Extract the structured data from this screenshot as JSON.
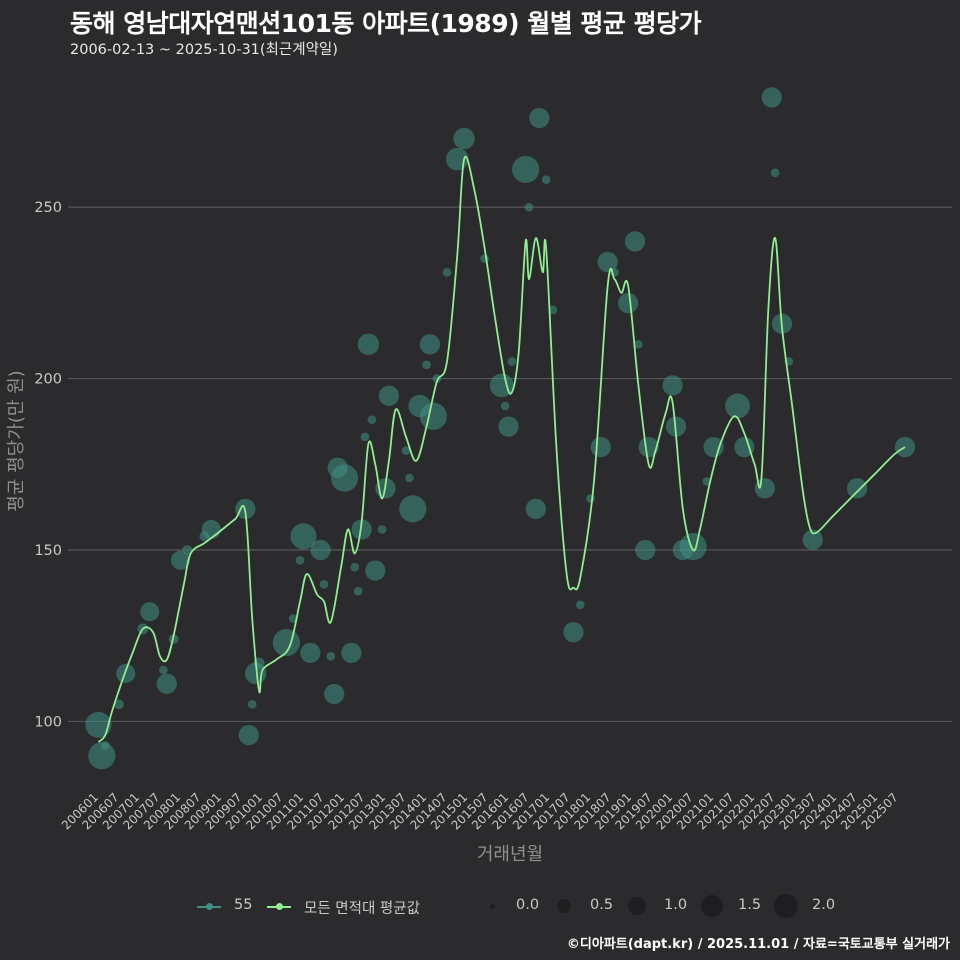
{
  "title": "동해 영남대자연맨션101동 아파트(1989) 월별 평균 평당가",
  "subtitle": "2006-02-13 ~ 2025-10-31(최근계약일)",
  "footer": "©디아파트(dapt.kr) / 2025.11.01 / 자료=국토교통부 실거래가",
  "colors": {
    "background": "#2b2b2d",
    "grid": "#58585c",
    "point": "#3f8f84",
    "line": "#90ee90",
    "size_dot": "#1e1e20"
  },
  "legend": {
    "series_55": "55",
    "series_avg": "모든 면적대 평균값",
    "sizes": [
      "0.0",
      "0.5",
      "1.0",
      "1.5",
      "2.0"
    ]
  },
  "chart_data": {
    "type": "scatter",
    "title": "동해 영남대자연맨션101동 아파트(1989) 월별 평균 평당가",
    "xlabel": "거래년월",
    "ylabel": "평균 평당가(만 원)",
    "ylim": [
      80,
      290
    ],
    "yticks": [
      100,
      150,
      200,
      250
    ],
    "x_range": [
      "2006-01",
      "2025-10"
    ],
    "xticks": [
      "200601",
      "200607",
      "200701",
      "200707",
      "200801",
      "200807",
      "200901",
      "200907",
      "201001",
      "201007",
      "201101",
      "201107",
      "201201",
      "201207",
      "201301",
      "201307",
      "201401",
      "201407",
      "201501",
      "201507",
      "201601",
      "201607",
      "201701",
      "201707",
      "201801",
      "201807",
      "201901",
      "201907",
      "202001",
      "202007",
      "202101",
      "202107",
      "202201",
      "202207",
      "202301",
      "202307",
      "202401",
      "202407",
      "202501",
      "202507"
    ],
    "size_legend": [
      0.0,
      0.5,
      1.0,
      1.5,
      2.0
    ],
    "series": [
      {
        "name": "55",
        "type": "bubble",
        "points": [
          {
            "x": "2006-02",
            "y": 99,
            "s": 1.9
          },
          {
            "x": "2006-03",
            "y": 90,
            "s": 2.0
          },
          {
            "x": "2006-04",
            "y": 93,
            "s": 0.4
          },
          {
            "x": "2006-08",
            "y": 105,
            "s": 0.5
          },
          {
            "x": "2006-10",
            "y": 114,
            "s": 1.3
          },
          {
            "x": "2007-03",
            "y": 127,
            "s": 0.6
          },
          {
            "x": "2007-05",
            "y": 132,
            "s": 1.3
          },
          {
            "x": "2007-09",
            "y": 115,
            "s": 0.4
          },
          {
            "x": "2007-10",
            "y": 111,
            "s": 1.4
          },
          {
            "x": "2007-12",
            "y": 124,
            "s": 0.5
          },
          {
            "x": "2008-02",
            "y": 147,
            "s": 1.3
          },
          {
            "x": "2008-04",
            "y": 150,
            "s": 0.5
          },
          {
            "x": "2008-09",
            "y": 154,
            "s": 0.5
          },
          {
            "x": "2008-11",
            "y": 156,
            "s": 1.3
          },
          {
            "x": "2009-09",
            "y": 162,
            "s": 1.4
          },
          {
            "x": "2009-10",
            "y": 96,
            "s": 1.4
          },
          {
            "x": "2009-11",
            "y": 105,
            "s": 0.4
          },
          {
            "x": "2009-12",
            "y": 114,
            "s": 1.5
          },
          {
            "x": "2010-01",
            "y": 117,
            "s": 0.6
          },
          {
            "x": "2010-09",
            "y": 123,
            "s": 2.0
          },
          {
            "x": "2010-11",
            "y": 130,
            "s": 0.4
          },
          {
            "x": "2011-01",
            "y": 147,
            "s": 0.4
          },
          {
            "x": "2011-02",
            "y": 154,
            "s": 1.9
          },
          {
            "x": "2011-04",
            "y": 120,
            "s": 1.4
          },
          {
            "x": "2011-07",
            "y": 150,
            "s": 1.4
          },
          {
            "x": "2011-08",
            "y": 140,
            "s": 0.4
          },
          {
            "x": "2011-10",
            "y": 119,
            "s": 0.4
          },
          {
            "x": "2011-11",
            "y": 108,
            "s": 1.4
          },
          {
            "x": "2011-12",
            "y": 174,
            "s": 1.4
          },
          {
            "x": "2012-02",
            "y": 171,
            "s": 2.0
          },
          {
            "x": "2012-04",
            "y": 120,
            "s": 1.4
          },
          {
            "x": "2012-05",
            "y": 145,
            "s": 0.4
          },
          {
            "x": "2012-06",
            "y": 138,
            "s": 0.4
          },
          {
            "x": "2012-07",
            "y": 156,
            "s": 1.4
          },
          {
            "x": "2012-08",
            "y": 183,
            "s": 0.4
          },
          {
            "x": "2012-09",
            "y": 210,
            "s": 1.5
          },
          {
            "x": "2012-10",
            "y": 188,
            "s": 0.4
          },
          {
            "x": "2012-11",
            "y": 144,
            "s": 1.4
          },
          {
            "x": "2013-01",
            "y": 156,
            "s": 0.4
          },
          {
            "x": "2013-02",
            "y": 168,
            "s": 1.4
          },
          {
            "x": "2013-03",
            "y": 195,
            "s": 1.4
          },
          {
            "x": "2013-08",
            "y": 179,
            "s": 0.4
          },
          {
            "x": "2013-09",
            "y": 171,
            "s": 0.4
          },
          {
            "x": "2013-10",
            "y": 162,
            "s": 2.0
          },
          {
            "x": "2013-12",
            "y": 192,
            "s": 1.6
          },
          {
            "x": "2014-02",
            "y": 204,
            "s": 0.4
          },
          {
            "x": "2014-03",
            "y": 210,
            "s": 1.4
          },
          {
            "x": "2014-04",
            "y": 189,
            "s": 2.0
          },
          {
            "x": "2014-05",
            "y": 200,
            "s": 0.4
          },
          {
            "x": "2014-08",
            "y": 231,
            "s": 0.4
          },
          {
            "x": "2014-11",
            "y": 264,
            "s": 1.6
          },
          {
            "x": "2015-01",
            "y": 270,
            "s": 1.5
          },
          {
            "x": "2015-07",
            "y": 235,
            "s": 0.4
          },
          {
            "x": "2015-12",
            "y": 198,
            "s": 1.7
          },
          {
            "x": "2016-02",
            "y": 186,
            "s": 1.4
          },
          {
            "x": "2016-01",
            "y": 192,
            "s": 0.4
          },
          {
            "x": "2016-03",
            "y": 205,
            "s": 0.4
          },
          {
            "x": "2016-07",
            "y": 261,
            "s": 2.0
          },
          {
            "x": "2016-08",
            "y": 250,
            "s": 0.4
          },
          {
            "x": "2016-10",
            "y": 162,
            "s": 1.4
          },
          {
            "x": "2016-11",
            "y": 276,
            "s": 1.4
          },
          {
            "x": "2017-01",
            "y": 258,
            "s": 0.4
          },
          {
            "x": "2017-03",
            "y": 220,
            "s": 0.4
          },
          {
            "x": "2017-09",
            "y": 126,
            "s": 1.4
          },
          {
            "x": "2017-11",
            "y": 134,
            "s": 0.4
          },
          {
            "x": "2018-02",
            "y": 165,
            "s": 0.4
          },
          {
            "x": "2018-05",
            "y": 180,
            "s": 1.4
          },
          {
            "x": "2018-07",
            "y": 234,
            "s": 1.4
          },
          {
            "x": "2018-09",
            "y": 231,
            "s": 0.4
          },
          {
            "x": "2019-01",
            "y": 222,
            "s": 1.4
          },
          {
            "x": "2019-03",
            "y": 240,
            "s": 1.4
          },
          {
            "x": "2019-04",
            "y": 210,
            "s": 0.4
          },
          {
            "x": "2019-06",
            "y": 150,
            "s": 1.4
          },
          {
            "x": "2019-07",
            "y": 180,
            "s": 1.4
          },
          {
            "x": "2020-02",
            "y": 198,
            "s": 1.4
          },
          {
            "x": "2020-03",
            "y": 186,
            "s": 1.4
          },
          {
            "x": "2020-05",
            "y": 150,
            "s": 1.4
          },
          {
            "x": "2020-08",
            "y": 151,
            "s": 2.0
          },
          {
            "x": "2020-12",
            "y": 170,
            "s": 0.4
          },
          {
            "x": "2021-02",
            "y": 180,
            "s": 1.4
          },
          {
            "x": "2021-09",
            "y": 192,
            "s": 1.8
          },
          {
            "x": "2021-11",
            "y": 180,
            "s": 1.4
          },
          {
            "x": "2022-05",
            "y": 168,
            "s": 1.4
          },
          {
            "x": "2022-07",
            "y": 282,
            "s": 1.4
          },
          {
            "x": "2022-08",
            "y": 260,
            "s": 0.4
          },
          {
            "x": "2022-10",
            "y": 216,
            "s": 1.4
          },
          {
            "x": "2022-12",
            "y": 205,
            "s": 0.4
          },
          {
            "x": "2023-07",
            "y": 153,
            "s": 1.4
          },
          {
            "x": "2024-08",
            "y": 168,
            "s": 1.4
          },
          {
            "x": "2025-10",
            "y": 180,
            "s": 1.4
          }
        ]
      },
      {
        "name": "모든 면적대 평균값",
        "type": "line",
        "points": [
          {
            "x": "2006-02",
            "y": 94
          },
          {
            "x": "2006-04",
            "y": 96
          },
          {
            "x": "2006-06",
            "y": 103
          },
          {
            "x": "2006-09",
            "y": 112
          },
          {
            "x": "2006-12",
            "y": 120
          },
          {
            "x": "2007-03",
            "y": 127
          },
          {
            "x": "2007-06",
            "y": 126
          },
          {
            "x": "2007-08",
            "y": 119
          },
          {
            "x": "2007-10",
            "y": 118
          },
          {
            "x": "2007-12",
            "y": 125
          },
          {
            "x": "2008-03",
            "y": 140
          },
          {
            "x": "2008-05",
            "y": 149
          },
          {
            "x": "2008-09",
            "y": 152
          },
          {
            "x": "2009-01",
            "y": 155
          },
          {
            "x": "2009-06",
            "y": 159
          },
          {
            "x": "2009-09",
            "y": 161
          },
          {
            "x": "2009-11",
            "y": 130
          },
          {
            "x": "2010-01",
            "y": 109
          },
          {
            "x": "2010-02",
            "y": 115
          },
          {
            "x": "2010-06",
            "y": 118
          },
          {
            "x": "2010-10",
            "y": 122
          },
          {
            "x": "2011-01",
            "y": 135
          },
          {
            "x": "2011-03",
            "y": 143
          },
          {
            "x": "2011-06",
            "y": 137
          },
          {
            "x": "2011-08",
            "y": 135
          },
          {
            "x": "2011-10",
            "y": 129
          },
          {
            "x": "2012-01",
            "y": 145
          },
          {
            "x": "2012-03",
            "y": 156
          },
          {
            "x": "2012-05",
            "y": 149
          },
          {
            "x": "2012-07",
            "y": 158
          },
          {
            "x": "2012-09",
            "y": 181
          },
          {
            "x": "2012-11",
            "y": 175
          },
          {
            "x": "2013-01",
            "y": 165
          },
          {
            "x": "2013-03",
            "y": 176
          },
          {
            "x": "2013-05",
            "y": 191
          },
          {
            "x": "2013-08",
            "y": 183
          },
          {
            "x": "2013-11",
            "y": 176
          },
          {
            "x": "2014-02",
            "y": 186
          },
          {
            "x": "2014-05",
            "y": 199
          },
          {
            "x": "2014-08",
            "y": 205
          },
          {
            "x": "2014-11",
            "y": 236
          },
          {
            "x": "2015-01",
            "y": 264
          },
          {
            "x": "2015-04",
            "y": 255
          },
          {
            "x": "2015-07",
            "y": 238
          },
          {
            "x": "2015-10",
            "y": 218
          },
          {
            "x": "2016-01",
            "y": 200
          },
          {
            "x": "2016-03",
            "y": 196
          },
          {
            "x": "2016-05",
            "y": 208
          },
          {
            "x": "2016-07",
            "y": 240
          },
          {
            "x": "2016-08",
            "y": 229
          },
          {
            "x": "2016-10",
            "y": 241
          },
          {
            "x": "2016-12",
            "y": 231
          },
          {
            "x": "2017-01",
            "y": 238
          },
          {
            "x": "2017-04",
            "y": 180
          },
          {
            "x": "2017-07",
            "y": 143
          },
          {
            "x": "2017-09",
            "y": 139
          },
          {
            "x": "2017-11",
            "y": 142
          },
          {
            "x": "2018-03",
            "y": 170
          },
          {
            "x": "2018-07",
            "y": 227
          },
          {
            "x": "2018-09",
            "y": 229
          },
          {
            "x": "2018-11",
            "y": 225
          },
          {
            "x": "2019-01",
            "y": 227
          },
          {
            "x": "2019-04",
            "y": 198
          },
          {
            "x": "2019-07",
            "y": 175
          },
          {
            "x": "2019-09",
            "y": 179
          },
          {
            "x": "2019-12",
            "y": 190
          },
          {
            "x": "2020-02",
            "y": 193
          },
          {
            "x": "2020-05",
            "y": 162
          },
          {
            "x": "2020-08",
            "y": 150
          },
          {
            "x": "2020-10",
            "y": 156
          },
          {
            "x": "2021-01",
            "y": 170
          },
          {
            "x": "2021-04",
            "y": 181
          },
          {
            "x": "2021-08",
            "y": 189
          },
          {
            "x": "2021-11",
            "y": 184
          },
          {
            "x": "2022-02",
            "y": 175
          },
          {
            "x": "2022-04",
            "y": 171
          },
          {
            "x": "2022-06",
            "y": 220
          },
          {
            "x": "2022-08",
            "y": 241
          },
          {
            "x": "2022-10",
            "y": 215
          },
          {
            "x": "2023-01",
            "y": 192
          },
          {
            "x": "2023-04",
            "y": 168
          },
          {
            "x": "2023-06",
            "y": 157
          },
          {
            "x": "2023-08",
            "y": 155
          },
          {
            "x": "2024-01",
            "y": 160
          },
          {
            "x": "2024-07",
            "y": 166
          },
          {
            "x": "2025-01",
            "y": 172
          },
          {
            "x": "2025-07",
            "y": 178
          },
          {
            "x": "2025-10",
            "y": 180
          }
        ]
      }
    ]
  }
}
